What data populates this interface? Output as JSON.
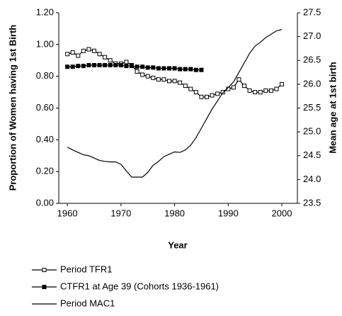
{
  "chart_data": {
    "type": "line",
    "x_label": "Year",
    "y_label": "Proportion of Women having 1st Birth",
    "y2_label": "Mean age at 1st birth",
    "x": [
      1960,
      1961,
      1962,
      1963,
      1964,
      1965,
      1966,
      1967,
      1968,
      1969,
      1970,
      1971,
      1972,
      1973,
      1974,
      1975,
      1976,
      1977,
      1978,
      1979,
      1980,
      1981,
      1982,
      1983,
      1984,
      1985,
      1986,
      1987,
      1988,
      1989,
      1990,
      1991,
      1992,
      1993,
      1994,
      1995,
      1996,
      1997,
      1998,
      1999,
      2000
    ],
    "xlim": [
      1958.4,
      2002.9
    ],
    "xticks": [
      1960,
      1970,
      1980,
      1990,
      2000
    ],
    "ylim": [
      0,
      1.2
    ],
    "yticks": [
      {
        "value": 0,
        "label": "0.00"
      },
      {
        "value": 0.2,
        "label": "0.20"
      },
      {
        "value": 0.4,
        "label": "0.40"
      },
      {
        "value": 0.6,
        "label": "0.60"
      },
      {
        "value": 0.8,
        "label": "0.80"
      },
      {
        "value": 1,
        "label": "1.00"
      },
      {
        "value": 1.2,
        "label": "1.20"
      }
    ],
    "y2lim": [
      23.5,
      27.5
    ],
    "y2ticks": [
      23.5,
      {
        "value": 24,
        "label": "24.0"
      },
      24.5,
      {
        "value": 25,
        "label": "25.0"
      },
      25.5,
      {
        "value": 26,
        "label": "26.0"
      },
      26.5,
      {
        "value": 27,
        "label": "27.0"
      },
      27.5
    ],
    "series": [
      {
        "name": "Period TFR1",
        "color": "#000000",
        "marker": "open-square",
        "values": [
          0.94,
          0.95,
          0.93,
          0.96,
          0.97,
          0.96,
          0.94,
          0.92,
          0.9,
          0.88,
          0.88,
          0.89,
          0.87,
          0.83,
          0.81,
          0.8,
          0.79,
          0.78,
          0.78,
          0.77,
          0.77,
          0.76,
          0.74,
          0.72,
          0.7,
          0.67,
          0.67,
          0.68,
          0.69,
          0.7,
          0.72,
          0.73,
          0.78,
          0.74,
          0.71,
          0.7,
          0.7,
          0.71,
          0.71,
          0.72,
          0.75
        ]
      },
      {
        "name": "CTFR1 at Age 39 (Cohorts 1936-1961)",
        "color": "#000000",
        "marker": "filled-square",
        "values": [
          0.86,
          0.86,
          0.865,
          0.865,
          0.87,
          0.87,
          0.87,
          0.87,
          0.87,
          0.87,
          0.87,
          0.865,
          0.865,
          0.86,
          0.86,
          0.855,
          0.855,
          0.85,
          0.85,
          0.85,
          0.85,
          0.845,
          0.845,
          0.845,
          0.84,
          0.84,
          null,
          null,
          null,
          null,
          null,
          null,
          null,
          null,
          null,
          null,
          null,
          null,
          null,
          null,
          null
        ]
      },
      {
        "name": "Period MAC1",
        "color": "#000000",
        "marker": "none",
        "axis": "y2",
        "values": [
          24.68,
          24.62,
          24.57,
          24.52,
          24.5,
          24.45,
          24.4,
          24.38,
          24.37,
          24.37,
          24.32,
          24.18,
          24.05,
          24.05,
          24.05,
          24.15,
          24.3,
          24.38,
          24.48,
          24.53,
          24.58,
          24.57,
          24.62,
          24.72,
          24.88,
          25.08,
          25.28,
          25.48,
          25.65,
          25.82,
          25.93,
          26.05,
          26.25,
          26.45,
          26.65,
          26.8,
          26.88,
          26.98,
          27.05,
          27.12,
          27.15
        ]
      }
    ]
  }
}
